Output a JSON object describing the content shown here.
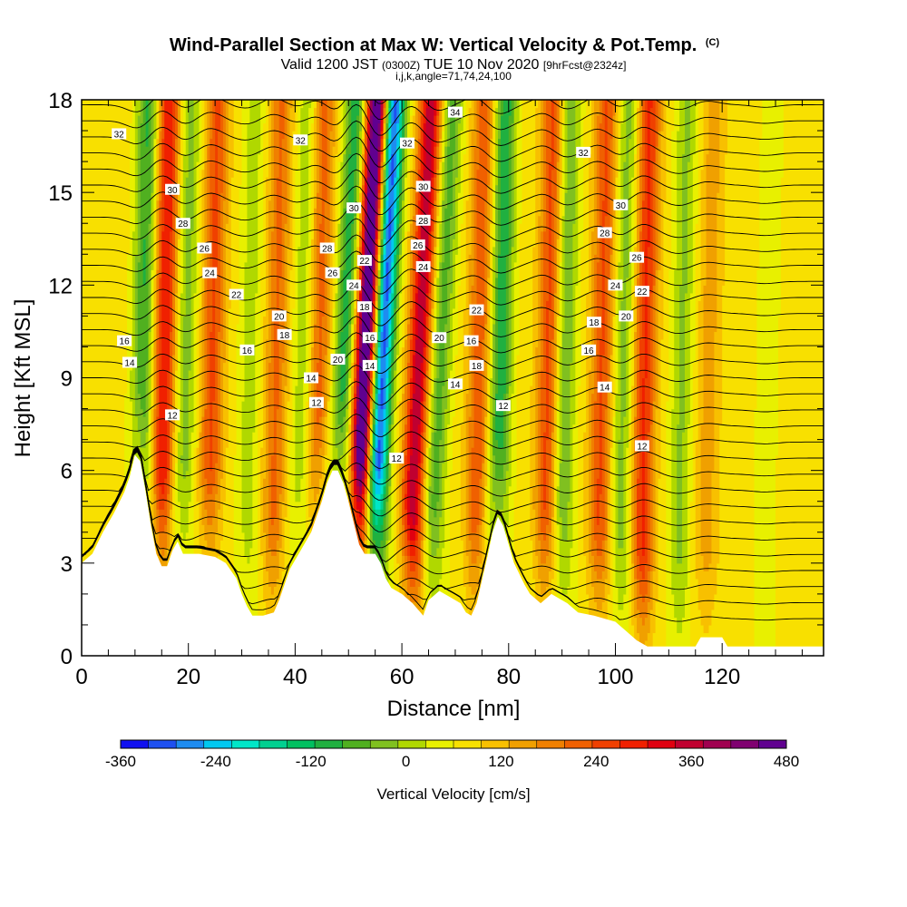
{
  "header": {
    "title_main": "Wind-Parallel Section at Max W: Vertical Velocity & Pot.Temp.",
    "title_mark": "(C)",
    "valid_a": "Valid 1200 JST",
    "valid_b": "(0300Z)",
    "valid_c": "TUE 10 Nov 2020",
    "valid_d": "[9hrFcst@2324z]",
    "ijk": "i,j,k,angle=71,74,24,100"
  },
  "chart_data": {
    "type": "heatmap",
    "xlabel": "Distance [nm]",
    "ylabel": "Height [Kft MSL]",
    "x_range": [
      0,
      139
    ],
    "y_range": [
      0,
      18
    ],
    "x_ticks": [
      0,
      20,
      40,
      60,
      80,
      100,
      120
    ],
    "y_ticks": [
      0,
      3,
      6,
      9,
      12,
      15,
      18
    ],
    "colorbar": {
      "label": "Vertical Velocity [cm/s]",
      "tick_labels": [
        "-360",
        "-240",
        "-120",
        "0",
        "120",
        "240",
        "360",
        "480"
      ],
      "tick_values": [
        -360,
        -240,
        -120,
        0,
        120,
        240,
        360,
        480
      ],
      "min": -360,
      "max": 480,
      "step": 30,
      "colors": [
        "#1010f0",
        "#1e50f0",
        "#1e8cf0",
        "#00c8f0",
        "#00e6c8",
        "#00d090",
        "#00c060",
        "#20b040",
        "#50b020",
        "#80c020",
        "#b0d800",
        "#e8f000",
        "#f8e000",
        "#f8c000",
        "#f0a000",
        "#f08000",
        "#f06000",
        "#f04000",
        "#f02000",
        "#e00010",
        "#c00030",
        "#a00050",
        "#800070",
        "#600090"
      ]
    },
    "updraft_bands_x": [
      15,
      24,
      36,
      44,
      52,
      62,
      74,
      87,
      97,
      105,
      117
    ],
    "updraft_bands_w": [
      200,
      140,
      110,
      120,
      420,
      250,
      130,
      150,
      140,
      170,
      60
    ],
    "downdraft_bands_x": [
      11,
      19,
      31,
      41,
      48,
      55,
      66,
      78,
      90,
      101,
      112,
      128
    ],
    "downdraft_bands_w": [
      -140,
      -90,
      -60,
      -70,
      -160,
      -360,
      -120,
      -160,
      -110,
      -90,
      -80,
      -40
    ],
    "terrain_height": [
      [
        0,
        3.0
      ],
      [
        2,
        3.3
      ],
      [
        4,
        4.0
      ],
      [
        6,
        4.6
      ],
      [
        8,
        5.3
      ],
      [
        9,
        5.8
      ],
      [
        10,
        6.5
      ],
      [
        11,
        6.3
      ],
      [
        12,
        5.3
      ],
      [
        13,
        4.2
      ],
      [
        14,
        3.3
      ],
      [
        15,
        2.9
      ],
      [
        16,
        2.9
      ],
      [
        17,
        3.4
      ],
      [
        18,
        3.7
      ],
      [
        19,
        3.3
      ],
      [
        22,
        3.3
      ],
      [
        25,
        3.2
      ],
      [
        27,
        3.0
      ],
      [
        29,
        2.5
      ],
      [
        30,
        2.0
      ],
      [
        31,
        1.6
      ],
      [
        32,
        1.3
      ],
      [
        34,
        1.3
      ],
      [
        36,
        1.4
      ],
      [
        37,
        1.8
      ],
      [
        39,
        2.8
      ],
      [
        41,
        3.4
      ],
      [
        43,
        4.0
      ],
      [
        45,
        5.0
      ],
      [
        46,
        5.6
      ],
      [
        47,
        6.0
      ],
      [
        48,
        6.0
      ],
      [
        49,
        5.6
      ],
      [
        50,
        5.0
      ],
      [
        51,
        4.3
      ],
      [
        52,
        3.6
      ],
      [
        53,
        3.3
      ],
      [
        55,
        3.3
      ],
      [
        56,
        3.0
      ],
      [
        57,
        2.5
      ],
      [
        58,
        2.2
      ],
      [
        60,
        2.0
      ],
      [
        62,
        1.7
      ],
      [
        63,
        1.5
      ],
      [
        64,
        1.3
      ],
      [
        65,
        1.8
      ],
      [
        67,
        2.1
      ],
      [
        69,
        1.9
      ],
      [
        71,
        1.7
      ],
      [
        72,
        1.4
      ],
      [
        73,
        1.3
      ],
      [
        74,
        1.7
      ],
      [
        76,
        3.2
      ],
      [
        77,
        4.0
      ],
      [
        78,
        4.5
      ],
      [
        79,
        4.2
      ],
      [
        81,
        3.0
      ],
      [
        83,
        2.3
      ],
      [
        84,
        2.0
      ],
      [
        86,
        1.7
      ],
      [
        88,
        2.0
      ],
      [
        91,
        1.7
      ],
      [
        93,
        1.4
      ],
      [
        96,
        1.3
      ],
      [
        100,
        1.1
      ],
      [
        102,
        0.8
      ],
      [
        104,
        0.5
      ],
      [
        106,
        0.3
      ],
      [
        115,
        0.3
      ],
      [
        116,
        0.6
      ],
      [
        120,
        0.6
      ],
      [
        121,
        0.3
      ],
      [
        139,
        0.3
      ]
    ],
    "isentrope_labels": [
      {
        "x": 7,
        "y": 16.9,
        "text": "32"
      },
      {
        "x": 41,
        "y": 16.7,
        "text": "32"
      },
      {
        "x": 61,
        "y": 16.6,
        "text": "32"
      },
      {
        "x": 70,
        "y": 17.6,
        "text": "34"
      },
      {
        "x": 94,
        "y": 16.3,
        "text": "32"
      },
      {
        "x": 17,
        "y": 15.1,
        "text": "30"
      },
      {
        "x": 51,
        "y": 14.5,
        "text": "30"
      },
      {
        "x": 64,
        "y": 15.2,
        "text": "30"
      },
      {
        "x": 101,
        "y": 14.6,
        "text": "30"
      },
      {
        "x": 19,
        "y": 14.0,
        "text": "28"
      },
      {
        "x": 46,
        "y": 13.2,
        "text": "28"
      },
      {
        "x": 64,
        "y": 14.1,
        "text": "28"
      },
      {
        "x": 98,
        "y": 13.7,
        "text": "28"
      },
      {
        "x": 23,
        "y": 13.2,
        "text": "26"
      },
      {
        "x": 47,
        "y": 12.4,
        "text": "26"
      },
      {
        "x": 63,
        "y": 13.3,
        "text": "26"
      },
      {
        "x": 104,
        "y": 12.9,
        "text": "26"
      },
      {
        "x": 24,
        "y": 12.4,
        "text": "24"
      },
      {
        "x": 51,
        "y": 12.0,
        "text": "24"
      },
      {
        "x": 64,
        "y": 12.6,
        "text": "24"
      },
      {
        "x": 100,
        "y": 12.0,
        "text": "24"
      },
      {
        "x": 29,
        "y": 11.7,
        "text": "22"
      },
      {
        "x": 53,
        "y": 12.8,
        "text": "22"
      },
      {
        "x": 74,
        "y": 11.2,
        "text": "22"
      },
      {
        "x": 105,
        "y": 11.8,
        "text": "22"
      },
      {
        "x": 37,
        "y": 11.0,
        "text": "20"
      },
      {
        "x": 48,
        "y": 9.6,
        "text": "20"
      },
      {
        "x": 67,
        "y": 10.3,
        "text": "20"
      },
      {
        "x": 102,
        "y": 11.0,
        "text": "20"
      },
      {
        "x": 8,
        "y": 10.2,
        "text": "16"
      },
      {
        "x": 31,
        "y": 9.9,
        "text": "16"
      },
      {
        "x": 54,
        "y": 10.3,
        "text": "16"
      },
      {
        "x": 73,
        "y": 10.2,
        "text": "16"
      },
      {
        "x": 95,
        "y": 9.9,
        "text": "16"
      },
      {
        "x": 38,
        "y": 10.4,
        "text": "18"
      },
      {
        "x": 53,
        "y": 11.3,
        "text": "18"
      },
      {
        "x": 74,
        "y": 9.4,
        "text": "18"
      },
      {
        "x": 96,
        "y": 10.8,
        "text": "18"
      },
      {
        "x": 9,
        "y": 9.5,
        "text": "14"
      },
      {
        "x": 43,
        "y": 9.0,
        "text": "14"
      },
      {
        "x": 54,
        "y": 9.4,
        "text": "14"
      },
      {
        "x": 70,
        "y": 8.8,
        "text": "14"
      },
      {
        "x": 98,
        "y": 8.7,
        "text": "14"
      },
      {
        "x": 17,
        "y": 7.8,
        "text": "12"
      },
      {
        "x": 44,
        "y": 8.2,
        "text": "12"
      },
      {
        "x": 59,
        "y": 6.4,
        "text": "12"
      },
      {
        "x": 79,
        "y": 8.1,
        "text": "12"
      },
      {
        "x": 105,
        "y": 6.8,
        "text": "12"
      }
    ]
  }
}
